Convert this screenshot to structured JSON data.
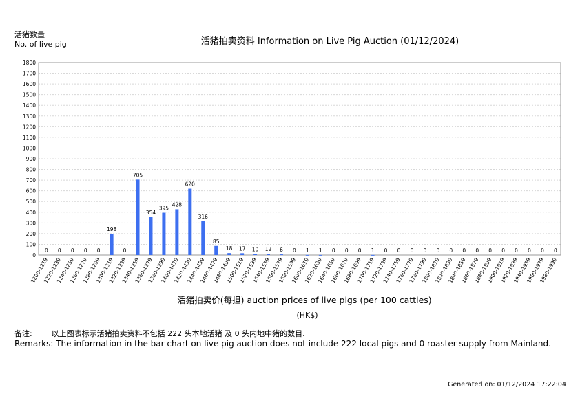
{
  "header": {
    "ylabel_cn": "活猪数量",
    "ylabel_en": "No. of live pig",
    "title": "活猪拍卖资料 Information on Live Pig Auction (01/12/2024)"
  },
  "footer": {
    "xlabel": "活猪拍卖价(每担) auction prices of live pigs (per 100 catties)",
    "unit": "(HK$)",
    "remarks_cn": "备注:        以上图表标示活猪拍卖资料不包括 222 头本地活猪 及 0 头内地中猪的数目.",
    "remarks_en": "Remarks: The information in the bar chart on live pig auction does not include 222 local pigs and 0 roaster supply from Mainland.",
    "generated": "Generated on: 01/12/2024 17:22:04"
  },
  "colors": {
    "bar": "#3d6ff0",
    "grid": "#d8d8d8",
    "axis": "#999999"
  },
  "chart_data": {
    "type": "bar",
    "title": "活猪拍卖资料 Information on Live Pig Auction (01/12/2024)",
    "xlabel": "活猪拍卖价(每担) auction prices of live pigs (per 100 catties)",
    "ylabel": "活猪数量 No. of live pig",
    "ylim": [
      0,
      1800
    ],
    "yticks": [
      0,
      100,
      200,
      300,
      400,
      500,
      600,
      700,
      800,
      900,
      1000,
      1100,
      1200,
      1300,
      1400,
      1500,
      1600,
      1700,
      1800
    ],
    "grid": true,
    "categories": [
      "1200-1219",
      "1220-1239",
      "1240-1259",
      "1260-1279",
      "1280-1299",
      "1300-1319",
      "1320-1339",
      "1340-1359",
      "1360-1379",
      "1380-1399",
      "1400-1419",
      "1420-1439",
      "1440-1459",
      "1460-1479",
      "1480-1499",
      "1500-1519",
      "1520-1539",
      "1540-1559",
      "1560-1579",
      "1580-1599",
      "1600-1619",
      "1620-1639",
      "1640-1659",
      "1660-1679",
      "1680-1699",
      "1700-1719",
      "1720-1739",
      "1740-1759",
      "1760-1779",
      "1780-1799",
      "1800-1819",
      "1820-1839",
      "1840-1859",
      "1860-1879",
      "1880-1899",
      "1900-1919",
      "1920-1939",
      "1940-1959",
      "1960-1979",
      "1980-1999"
    ],
    "values": [
      0,
      0,
      0,
      0,
      0,
      198,
      0,
      705,
      354,
      395,
      428,
      620,
      316,
      85,
      18,
      17,
      10,
      12,
      6,
      0,
      1,
      1,
      0,
      0,
      0,
      1,
      0,
      0,
      0,
      0,
      0,
      0,
      0,
      0,
      0,
      0,
      0,
      0,
      0,
      0
    ]
  }
}
